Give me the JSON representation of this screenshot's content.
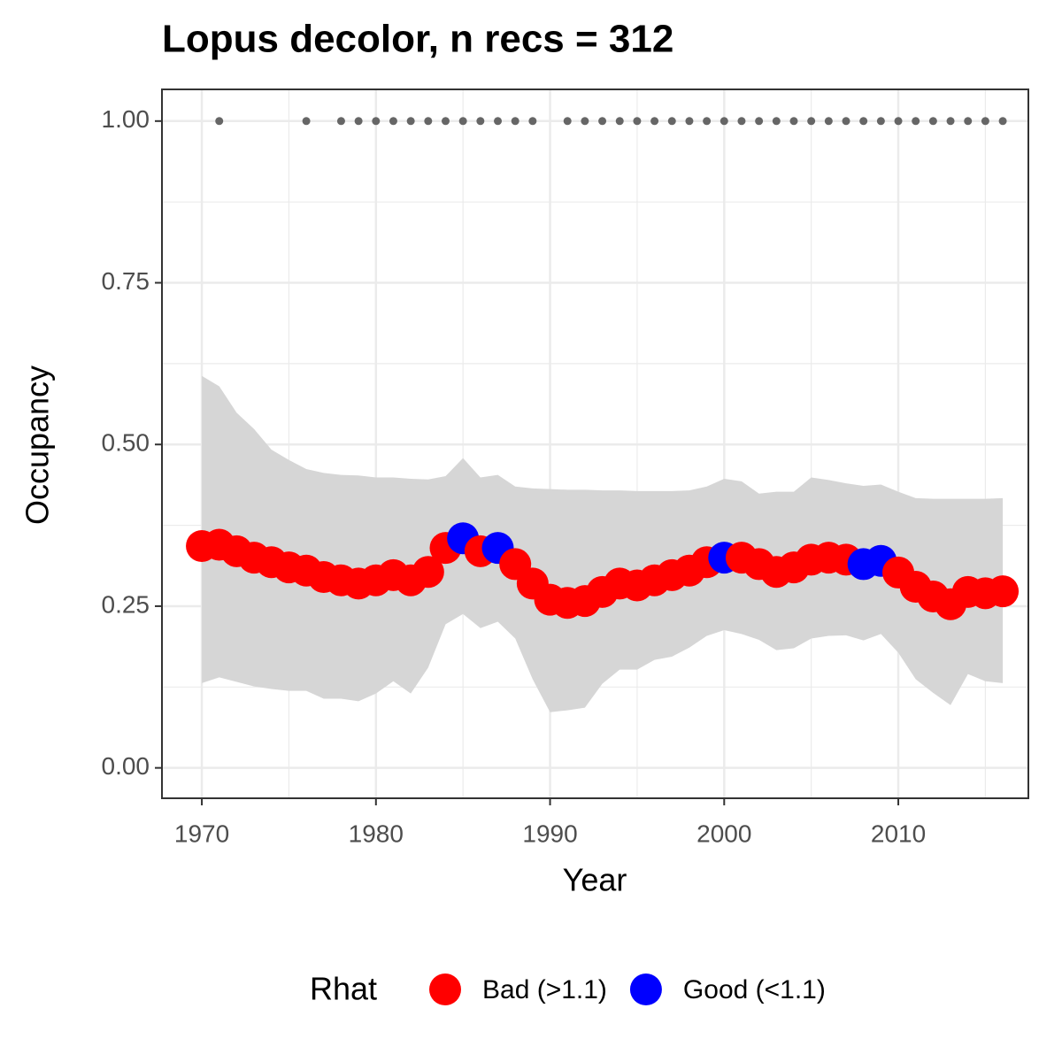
{
  "chart_data": {
    "type": "scatter",
    "title": "Lopus decolor, n recs = 312",
    "x_label": "Year",
    "y_label": "Occupancy",
    "x": [
      1970,
      1971,
      1972,
      1973,
      1974,
      1975,
      1976,
      1977,
      1978,
      1979,
      1980,
      1981,
      1982,
      1983,
      1984,
      1985,
      1986,
      1987,
      1988,
      1989,
      1990,
      1991,
      1992,
      1993,
      1994,
      1995,
      1996,
      1997,
      1998,
      1999,
      2000,
      2001,
      2002,
      2003,
      2004,
      2005,
      2006,
      2007,
      2008,
      2009,
      2010,
      2011,
      2012,
      2013,
      2014,
      2015,
      2016
    ],
    "series": [
      {
        "name": "Bad (>1.1)",
        "color": "#ff0000",
        "values": [
          0.343,
          0.345,
          0.335,
          0.325,
          0.318,
          0.31,
          0.305,
          0.295,
          0.29,
          0.285,
          0.29,
          0.298,
          0.29,
          0.303,
          0.34,
          null,
          0.335,
          null,
          0.315,
          0.285,
          0.26,
          0.255,
          0.258,
          0.272,
          0.285,
          0.282,
          0.29,
          0.298,
          0.305,
          0.318,
          null,
          0.325,
          0.315,
          0.303,
          0.31,
          0.322,
          0.325,
          0.322,
          null,
          null,
          0.302,
          0.28,
          0.265,
          0.253,
          0.272,
          0.27,
          0.273
        ]
      },
      {
        "name": "Good (<1.1)",
        "color": "#0000ff",
        "values": [
          null,
          null,
          null,
          null,
          null,
          null,
          null,
          null,
          null,
          null,
          null,
          null,
          null,
          null,
          null,
          0.355,
          null,
          0.34,
          null,
          null,
          null,
          null,
          null,
          null,
          null,
          null,
          null,
          null,
          null,
          null,
          0.325,
          null,
          null,
          null,
          null,
          null,
          null,
          null,
          0.315,
          0.32,
          null,
          null,
          null,
          null,
          null,
          null,
          null
        ]
      }
    ],
    "band": {
      "color": "#d6d6d6",
      "upper": [
        0.606,
        0.59,
        0.549,
        0.524,
        0.492,
        0.476,
        0.462,
        0.456,
        0.453,
        0.452,
        0.449,
        0.449,
        0.447,
        0.446,
        0.451,
        0.479,
        0.449,
        0.453,
        0.435,
        0.432,
        0.431,
        0.43,
        0.43,
        0.429,
        0.429,
        0.428,
        0.428,
        0.428,
        0.429,
        0.435,
        0.447,
        0.443,
        0.424,
        0.427,
        0.427,
        0.449,
        0.445,
        0.44,
        0.436,
        0.438,
        0.427,
        0.417,
        0.416,
        0.416,
        0.416,
        0.416,
        0.417
      ],
      "lower": [
        0.131,
        0.14,
        0.133,
        0.126,
        0.122,
        0.119,
        0.119,
        0.107,
        0.107,
        0.103,
        0.115,
        0.134,
        0.115,
        0.155,
        0.222,
        0.238,
        0.216,
        0.226,
        0.2,
        0.137,
        0.086,
        0.089,
        0.093,
        0.13,
        0.152,
        0.152,
        0.167,
        0.172,
        0.186,
        0.204,
        0.213,
        0.207,
        0.198,
        0.182,
        0.185,
        0.2,
        0.204,
        0.205,
        0.197,
        0.207,
        0.178,
        0.137,
        0.116,
        0.097,
        0.145,
        0.134,
        0.131
      ]
    },
    "detections": {
      "color": "#666666",
      "x": [
        1971,
        1976,
        1978,
        1979,
        1980,
        1981,
        1982,
        1983,
        1984,
        1985,
        1986,
        1987,
        1988,
        1989,
        1991,
        1992,
        1993,
        1994,
        1995,
        1996,
        1997,
        1998,
        1999,
        2000,
        2001,
        2002,
        2003,
        2004,
        2005,
        2006,
        2007,
        2008,
        2009,
        2010,
        2011,
        2012,
        2013,
        2014,
        2015,
        2016
      ],
      "values": [
        1,
        1,
        1,
        1,
        1,
        1,
        1,
        1,
        1,
        1,
        1,
        1,
        1,
        1,
        1,
        1,
        1,
        1,
        1,
        1,
        1,
        1,
        1,
        1,
        1,
        1,
        1,
        1,
        1,
        1,
        1,
        1,
        1,
        1,
        1,
        1,
        1,
        1,
        1,
        1
      ]
    },
    "legend_title": "Rhat",
    "xlim": [
      1967.71,
      2017.47
    ],
    "ylim": [
      -0.047,
      1.049
    ],
    "xticks": [
      1970,
      1980,
      1990,
      2000,
      2010
    ],
    "yticks": [
      {
        "value": 0,
        "label": "0.00"
      },
      {
        "value": 0.25,
        "label": "0.25"
      },
      {
        "value": 0.5,
        "label": "0.50"
      },
      {
        "value": 0.75,
        "label": "0.75"
      },
      {
        "value": 1,
        "label": "1.00"
      }
    ],
    "grid": true
  }
}
